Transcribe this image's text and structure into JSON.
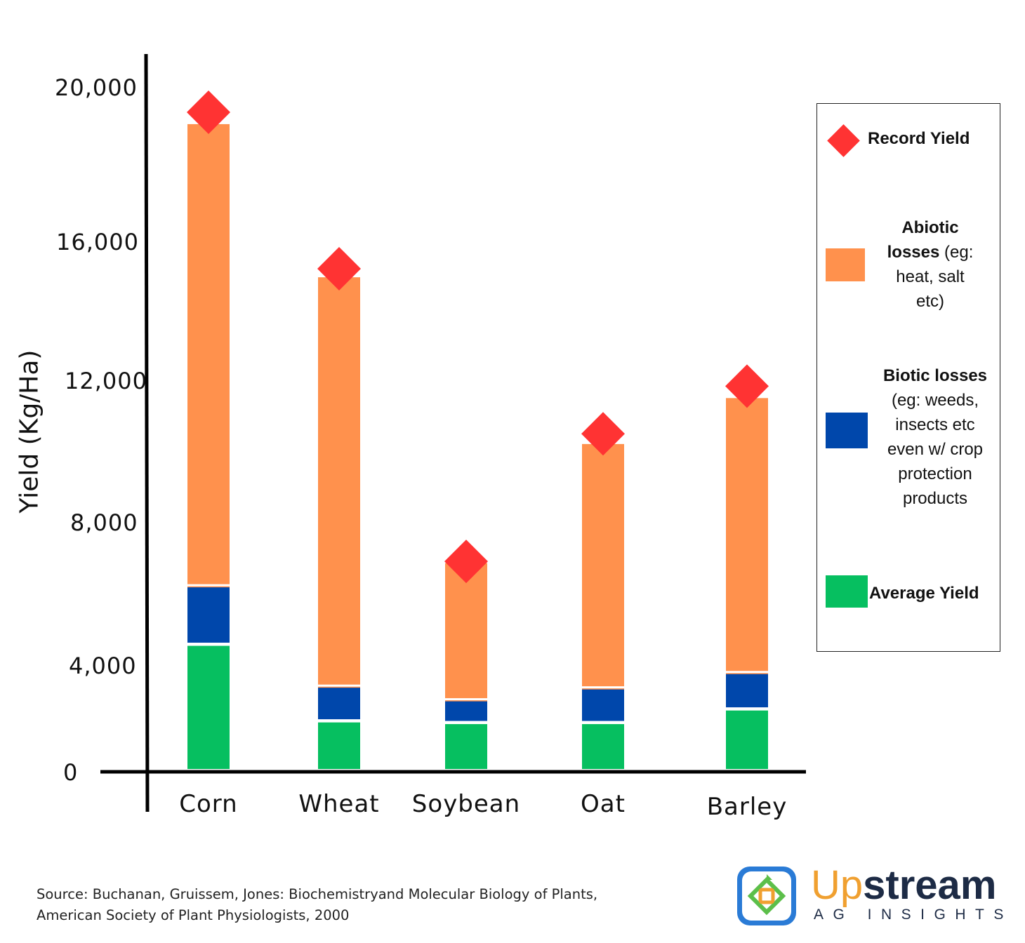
{
  "chart_data": {
    "type": "bar",
    "stacked": true,
    "ylabel": "Yield (Kg/Ha)",
    "xlabel": "",
    "ylim": [
      0,
      20000
    ],
    "yticks": [
      "20,000",
      "16,000",
      "12,000",
      "8,000",
      "4,000",
      "0"
    ],
    "categories": [
      "Corn",
      "Wheat",
      "Soybean",
      "Oat",
      "Barley"
    ],
    "series": [
      {
        "name": "Average Yield",
        "color": "#06bf60",
        "values": [
          3650,
          1400,
          1350,
          1350,
          1750
        ]
      },
      {
        "name": "Biotic losses",
        "color": "#0047ab",
        "values": [
          1750,
          1050,
          700,
          1050,
          1100
        ]
      },
      {
        "name": "Abiotic losses",
        "color": "#ff914d",
        "values": [
          13550,
          12000,
          4000,
          7150,
          8050
        ]
      }
    ],
    "record_yield": {
      "name": "Record Yield",
      "color": "#ff3333",
      "values": [
        19300,
        14700,
        6100,
        9850,
        11250
      ]
    },
    "legend_position": "right"
  },
  "legend": {
    "record": {
      "bold": "Record Yield",
      "rest": ""
    },
    "abiotic": {
      "bold": "Abiotic losses",
      "rest": " (eg: heat, salt etc)"
    },
    "biotic": {
      "bold": "Biotic losses",
      "rest": " (eg: weeds, insects etc even w/ crop protection products"
    },
    "average": {
      "bold": "Average Yield",
      "rest": ""
    }
  },
  "source": "Source: Buchanan, Gruissem, Jones: Biochemistryand Molecular Biology of Plants, American Society of Plant Physiologists, 2000",
  "logo": {
    "word_up": "Up",
    "word_stream": "stream",
    "subtitle": "AG INSIGHTS"
  }
}
